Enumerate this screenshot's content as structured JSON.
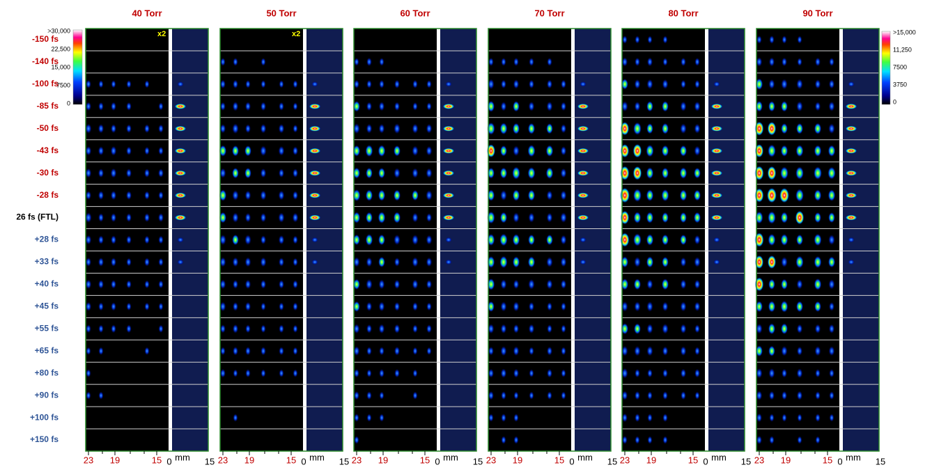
{
  "panels": [
    {
      "title": "40 Torr",
      "note": "x2"
    },
    {
      "title": "50 Torr",
      "note": "x2"
    },
    {
      "title": "60 Torr"
    },
    {
      "title": "70 Torr"
    },
    {
      "title": "80 Torr"
    },
    {
      "title": "90 Torr"
    }
  ],
  "rows": [
    {
      "label": "-150 fs",
      "color": "#c00000"
    },
    {
      "label": "-140 fs",
      "color": "#c00000"
    },
    {
      "label": "-100 fs",
      "color": "#c00000"
    },
    {
      "label": "-85 fs",
      "color": "#c00000"
    },
    {
      "label": "-50 fs",
      "color": "#c00000"
    },
    {
      "label": "-43 fs",
      "color": "#c00000"
    },
    {
      "label": "-30 fs",
      "color": "#c00000"
    },
    {
      "label": "-28 fs",
      "color": "#c00000"
    },
    {
      "label": "26 fs (FTL)",
      "color": "#000000"
    },
    {
      "label": "+28 fs",
      "color": "#2e5496"
    },
    {
      "label": "+33 fs",
      "color": "#2e5496"
    },
    {
      "label": "+40 fs",
      "color": "#2e5496"
    },
    {
      "label": "+45 fs",
      "color": "#2e5496"
    },
    {
      "label": "+55 fs",
      "color": "#2e5496"
    },
    {
      "label": "+65 fs",
      "color": "#2e5496"
    },
    {
      "label": "+80 fs",
      "color": "#2e5496"
    },
    {
      "label": "+90 fs",
      "color": "#2e5496"
    },
    {
      "label": "+100 fs",
      "color": "#2e5496"
    },
    {
      "label": "+150 fs",
      "color": "#2e5496"
    }
  ],
  "left_colorbar": {
    "labels": [
      ">30,000",
      "22,500",
      "15,000",
      "7500",
      "0"
    ]
  },
  "right_colorbar": {
    "labels": [
      ">15,000",
      "11,250",
      "7500",
      "3750",
      "0"
    ]
  },
  "axis": {
    "left_ticks": [
      "23",
      "19",
      "15"
    ],
    "zero": "0",
    "unit": "mm",
    "right_tick": "15"
  }
}
